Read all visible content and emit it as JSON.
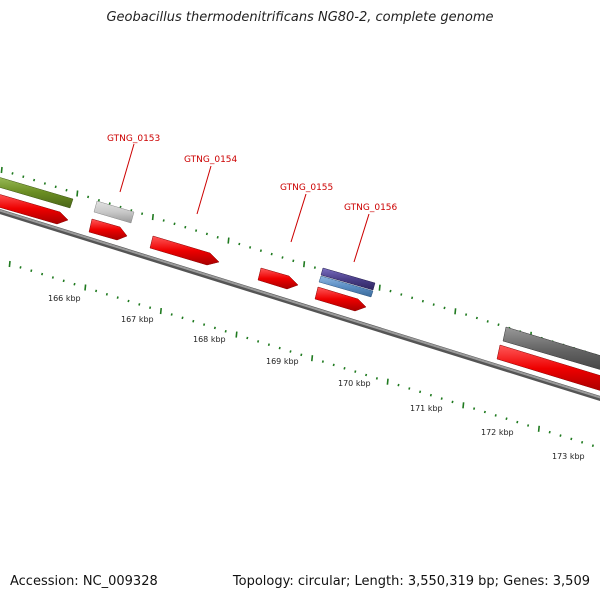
{
  "header": {
    "title": "Geobacillus thermodenitrificans NG80-2, complete genome"
  },
  "footer": {
    "accession": "Accession: NC_009328",
    "stats": "Topology: circular; Length: 3,550,319 bp; Genes: 3,509"
  },
  "scale_labels": [
    "166 kbp",
    "167 kbp",
    "168 kbp",
    "169 kbp",
    "170 kbp",
    "171 kbp",
    "172 kbp",
    "173 kbp"
  ],
  "gene_labels": [
    "GTNG_0153",
    "GTNG_0154",
    "GTNG_0155",
    "GTNG_0156"
  ],
  "colors": {
    "cds_red": "#ee0000",
    "olive": "#6b8e23",
    "light_gray": "#c8c8c8",
    "purple": "#4b3f8a",
    "steel_blue": "#5b8ec4",
    "dark_gray": "#666666",
    "backbone": "#888888",
    "tick_green": "#1f7a1f",
    "label_red": "#cc0000"
  }
}
